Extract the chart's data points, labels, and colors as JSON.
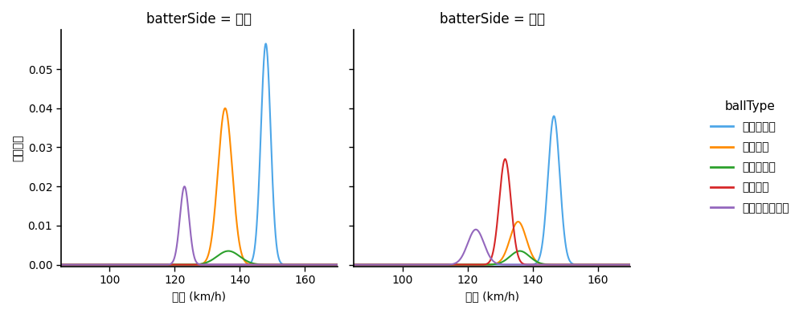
{
  "title_right": "batterSide = 右打",
  "title_left": "batterSide = 左打",
  "xlabel": "球速 (km/h)",
  "ylabel": "確率密度",
  "legend_title": "ballType",
  "xlim": [
    85,
    170
  ],
  "ylim": [
    -0.0005,
    0.06
  ],
  "yticks": [
    0.0,
    0.01,
    0.02,
    0.03,
    0.04,
    0.05
  ],
  "xticks": [
    100,
    120,
    140,
    160
  ],
  "ball_types": [
    "ストレート",
    "フォーク",
    "スライダー",
    "シンカー",
    "ナックルカーブ"
  ],
  "colors": {
    "ストレート": "#4da6e8",
    "フォーク": "#ff8c00",
    "スライダー": "#2ca02c",
    "シンカー": "#d62728",
    "ナックルカーブ": "#9467bd"
  },
  "background_color": "#ffffff",
  "right_curves": {
    "ストレート": [
      148.0,
      1.5,
      0.0565
    ],
    "フォーク": [
      135.5,
      2.2,
      0.04
    ],
    "スライダー": [
      136.5,
      3.5,
      0.0035
    ],
    "シンカー": [
      0,
      0,
      0
    ],
    "ナックルカーブ": [
      123.0,
      1.4,
      0.02
    ]
  },
  "left_curves": {
    "ストレート": [
      146.5,
      1.8,
      0.038
    ],
    "フォーク": [
      135.5,
      2.5,
      0.011
    ],
    "スライダー": [
      136.0,
      3.0,
      0.0035
    ],
    "シンカー": [
      131.5,
      1.8,
      0.027
    ],
    "ナックルカーブ": [
      122.5,
      2.5,
      0.009
    ]
  }
}
